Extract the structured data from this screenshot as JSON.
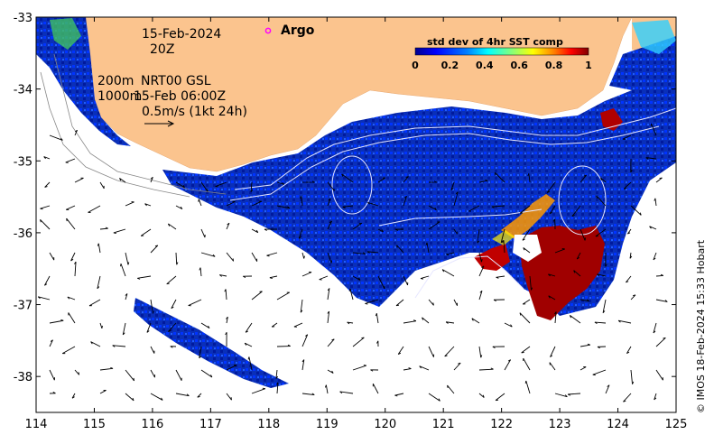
{
  "map": {
    "lon_range": [
      114,
      125
    ],
    "lat_range": [
      -38.5,
      -33
    ],
    "x_ticks": [
      "114",
      "115",
      "116",
      "117",
      "118",
      "119",
      "120",
      "121",
      "122",
      "123",
      "124",
      "125"
    ],
    "y_ticks": [
      "-33",
      "-34",
      "-35",
      "-36",
      "-37",
      "-38"
    ],
    "land_color": "#fbc48e",
    "ocean_color": "#ffffff"
  },
  "annotations": {
    "date": "15-Feb-2024",
    "hour": "20Z",
    "depth_200": "200m",
    "depth_1000": "1000m",
    "product": "NRT00 GSL",
    "product_time": "15-Feb 06:00Z",
    "scale": "0.5m/s (1kt 24h)",
    "argo": "Argo"
  },
  "colorbar": {
    "title": "std dev of 4hr SST comp",
    "ticks": [
      "0",
      "0.2",
      "0.4",
      "0.6",
      "0.8",
      "1"
    ],
    "colors": [
      "#00008f",
      "#0000ff",
      "#0080ff",
      "#00ffff",
      "#80ff80",
      "#ffff00",
      "#ff8000",
      "#ff0000",
      "#800000"
    ]
  },
  "credit": "© IMOS 18-Feb-2024 15:33 Hobart"
}
